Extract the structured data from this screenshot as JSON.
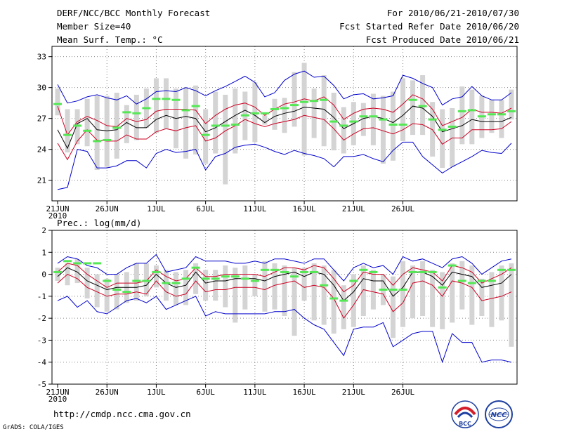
{
  "header": {
    "line1_left": "DERF/NCC/BCC Monthly Forecast",
    "line2_left": "Member Size=40",
    "line3_left": "Mean Surf. Temp.: °C",
    "line1_right": "For 2010/06/21-2010/07/30",
    "line2_right": "Fcst Started Refer Date 2010/06/20",
    "line3_right": "Fcst Produced Date 2010/06/21"
  },
  "footer": {
    "url": "http://cmdp.ncc.cma.gov.cn",
    "credit": "GrADS: COLA/IGES",
    "logo_left_text": "BCC",
    "logo_right_text": "NCC"
  },
  "colors": {
    "box": "#d4d4d4",
    "mean": "#55e855",
    "spread_outer": "#0000cc",
    "spread_inner": "#cc0022",
    "median": "#000000",
    "grid": "#888888",
    "logo_blue": "#1d3fa0",
    "logo_red": "#d21e2b"
  },
  "chart_data": [
    {
      "type": "line",
      "title": "Mean Surf. Temp.: °C",
      "ylim": [
        19,
        34
      ],
      "yticks": [
        21,
        24,
        27,
        30,
        33
      ],
      "xtick_labels": [
        "21JUN",
        "26JUN",
        "1JUL",
        "6JUL",
        "11JUL",
        "16JUL",
        "21JUL",
        "26JUL"
      ],
      "xtick_index": [
        0,
        5,
        10,
        15,
        20,
        25,
        30,
        35
      ],
      "year_label": "2010",
      "grid": true,
      "series": [
        {
          "name": "max",
          "role": "outer",
          "values": [
            30.3,
            28.5,
            28.7,
            29.1,
            29.3,
            29.0,
            28.8,
            29.2,
            28.4,
            28.9,
            29.6,
            29.7,
            29.6,
            30.0,
            29.7,
            29.2,
            29.7,
            30.1,
            30.6,
            31.1,
            30.5,
            29.1,
            29.5,
            30.7,
            31.3,
            31.6,
            31.0,
            31.1,
            30.2,
            28.9,
            29.3,
            29.4,
            28.9,
            29.0,
            29.2,
            31.2,
            30.9,
            30.4,
            30.0,
            28.3,
            28.9,
            29.1,
            30.1,
            29.2,
            28.8,
            28.8,
            29.5
          ]
        },
        {
          "name": "upper",
          "role": "inner",
          "values": [
            28.2,
            25.4,
            26.7,
            27.2,
            26.8,
            26.3,
            26.2,
            27.0,
            26.7,
            26.9,
            27.7,
            27.9,
            27.9,
            27.9,
            27.8,
            26.5,
            27.3,
            27.9,
            28.3,
            28.5,
            28.1,
            27.3,
            27.9,
            28.4,
            28.6,
            28.9,
            28.7,
            29.1,
            28.3,
            26.9,
            27.5,
            27.9,
            28.0,
            27.9,
            27.6,
            28.4,
            29.3,
            28.9,
            27.9,
            26.3,
            26.7,
            27.1,
            27.9,
            27.6,
            27.6,
            27.5,
            28.0
          ]
        },
        {
          "name": "median",
          "role": "median",
          "values": [
            25.9,
            24.1,
            26.5,
            27.0,
            25.9,
            25.8,
            25.9,
            26.6,
            26.1,
            26.1,
            26.9,
            27.3,
            27.0,
            27.2,
            27.0,
            25.7,
            26.1,
            26.7,
            27.3,
            27.8,
            27.3,
            26.6,
            27.2,
            27.5,
            27.7,
            28.1,
            28.0,
            27.9,
            27.1,
            26.0,
            26.5,
            27.0,
            27.2,
            27.0,
            26.6,
            27.3,
            28.2,
            28.0,
            27.2,
            25.7,
            26.0,
            26.3,
            26.9,
            26.7,
            26.7,
            26.7,
            27.1
          ]
        },
        {
          "name": "lower",
          "role": "inner",
          "values": [
            24.6,
            23.0,
            24.8,
            25.9,
            24.9,
            24.8,
            24.8,
            25.4,
            25.0,
            25.0,
            25.7,
            26.0,
            25.8,
            26.1,
            26.3,
            24.8,
            25.1,
            25.8,
            26.3,
            26.9,
            26.5,
            26.2,
            26.5,
            26.7,
            26.9,
            27.3,
            27.1,
            26.9,
            26.0,
            24.9,
            25.5,
            26.0,
            26.1,
            25.8,
            25.5,
            25.9,
            26.5,
            26.4,
            25.9,
            24.5,
            25.1,
            25.1,
            25.9,
            25.9,
            25.9,
            26.0,
            26.7
          ]
        },
        {
          "name": "min",
          "role": "outer",
          "values": [
            20.1,
            20.3,
            24.0,
            23.8,
            22.2,
            22.2,
            22.4,
            22.9,
            22.9,
            22.2,
            23.6,
            24.0,
            23.7,
            23.8,
            24.0,
            22.0,
            23.3,
            23.6,
            24.2,
            24.4,
            24.5,
            24.2,
            23.8,
            23.5,
            23.9,
            23.6,
            23.4,
            23.1,
            22.3,
            23.3,
            23.3,
            23.5,
            23.1,
            22.8,
            23.9,
            24.7,
            24.7,
            23.3,
            22.5,
            21.7,
            22.3,
            22.8,
            23.3,
            23.9,
            23.7,
            23.6,
            24.6
          ]
        },
        {
          "name": "mean",
          "role": "mean",
          "values": [
            28.4,
            25.4,
            26.3,
            25.8,
            24.8,
            24.9,
            26.1,
            27.6,
            27.5,
            28.0,
            28.9,
            28.9,
            28.8,
            27.8,
            28.2,
            25.4,
            26.3,
            26.3,
            26.4,
            27.3,
            27.5,
            27.5,
            27.9,
            28.0,
            28.3,
            28.6,
            28.7,
            28.8,
            26.7,
            26.3,
            26.7,
            27.2,
            27.2,
            26.9,
            26.4,
            26.4,
            28.8,
            28.2,
            26.9,
            25.9,
            26.2,
            27.7,
            27.8,
            27.2,
            27.4,
            27.4,
            27.7
          ]
        },
        {
          "name": "box_high",
          "role": "box",
          "values": [
            29.9,
            27.9,
            27.9,
            28.9,
            29.2,
            29.2,
            29.5,
            28.3,
            29.3,
            29.9,
            30.9,
            30.9,
            29.9,
            30.0,
            30.2,
            27.9,
            29.6,
            29.3,
            29.9,
            29.6,
            30.5,
            27.3,
            28.9,
            29.0,
            31.5,
            32.4,
            29.9,
            31.2,
            29.5,
            28.1,
            28.6,
            28.5,
            29.4,
            29.2,
            29.6,
            30.9,
            30.7,
            31.2,
            28.6,
            27.9,
            28.0,
            30.1,
            29.8,
            29.2,
            28.8,
            28.8,
            29.8
          ]
        },
        {
          "name": "box_low",
          "role": "box",
          "values": [
            27.3,
            23.7,
            24.5,
            24.3,
            22.0,
            22.3,
            23.1,
            24.6,
            24.9,
            26.1,
            25.6,
            26.0,
            24.1,
            23.1,
            23.5,
            22.6,
            23.6,
            20.6,
            23.6,
            24.9,
            24.7,
            26.4,
            25.9,
            25.6,
            26.2,
            23.4,
            25.1,
            24.3,
            23.9,
            23.6,
            24.4,
            25.3,
            24.4,
            22.6,
            22.9,
            24.8,
            25.4,
            25.4,
            23.3,
            22.2,
            22.3,
            24.5,
            24.5,
            25.1,
            25.6,
            25.1,
            26.9
          ]
        }
      ]
    },
    {
      "type": "line",
      "title": "Prec.: log(mm/d)",
      "ylim": [
        -5,
        2
      ],
      "yticks": [
        -5,
        -4,
        -3,
        -2,
        -1,
        0,
        1,
        2
      ],
      "xtick_labels": [
        "21JUN",
        "26JUN",
        "1JUL",
        "6JUL",
        "11JUL",
        "16JUL",
        "21JUL",
        "26JUL"
      ],
      "xtick_index": [
        0,
        5,
        10,
        15,
        20,
        25,
        30,
        35
      ],
      "year_label": "2010",
      "grid": true,
      "series": [
        {
          "name": "max",
          "role": "outer",
          "values": [
            0.5,
            0.8,
            0.7,
            0.4,
            0.3,
            0.0,
            0.0,
            0.3,
            0.5,
            0.5,
            0.9,
            0.1,
            0.2,
            0.3,
            0.8,
            0.6,
            0.6,
            0.6,
            0.5,
            0.5,
            0.6,
            0.5,
            0.7,
            0.7,
            0.6,
            0.5,
            0.7,
            0.7,
            0.2,
            -0.3,
            0.3,
            0.5,
            0.3,
            0.4,
            0.0,
            0.8,
            0.6,
            0.7,
            0.5,
            0.3,
            0.7,
            0.8,
            0.5,
            0.0,
            0.3,
            0.6,
            0.7
          ]
        },
        {
          "name": "upper",
          "role": "inner",
          "values": [
            0.1,
            0.5,
            0.4,
            0.0,
            -0.3,
            -0.6,
            -0.4,
            -0.4,
            -0.4,
            -0.3,
            0.2,
            -0.1,
            -0.3,
            -0.2,
            0.3,
            -0.1,
            -0.1,
            0.0,
            0.0,
            0.0,
            0.0,
            -0.1,
            0.1,
            0.3,
            0.3,
            0.2,
            0.4,
            0.3,
            -0.2,
            -0.8,
            -0.5,
            0.1,
            0.0,
            0.0,
            -0.5,
            0.0,
            0.3,
            0.2,
            0.1,
            -0.3,
            0.4,
            0.3,
            0.1,
            -0.4,
            -0.2,
            0.0,
            0.3
          ]
        },
        {
          "name": "median",
          "role": "median",
          "values": [
            -0.1,
            0.3,
            0.1,
            -0.3,
            -0.5,
            -0.7,
            -0.6,
            -0.6,
            -0.6,
            -0.5,
            0.0,
            -0.4,
            -0.6,
            -0.5,
            0.1,
            -0.4,
            -0.3,
            -0.3,
            -0.2,
            -0.2,
            -0.2,
            -0.3,
            -0.1,
            0.0,
            0.1,
            -0.1,
            0.1,
            0.0,
            -0.5,
            -1.2,
            -0.8,
            -0.2,
            -0.3,
            -0.3,
            -1.0,
            -0.6,
            0.1,
            0.1,
            -0.1,
            -0.5,
            0.1,
            0.0,
            -0.1,
            -0.6,
            -0.5,
            -0.4,
            0.0
          ]
        },
        {
          "name": "lower",
          "role": "inner",
          "values": [
            -0.4,
            0.0,
            -0.2,
            -0.6,
            -0.8,
            -1.0,
            -0.9,
            -0.9,
            -0.8,
            -0.9,
            -0.3,
            -0.8,
            -1.0,
            -0.9,
            -0.3,
            -0.8,
            -0.7,
            -0.7,
            -0.6,
            -0.6,
            -0.6,
            -0.7,
            -0.5,
            -0.4,
            -0.3,
            -0.6,
            -0.5,
            -0.6,
            -1.1,
            -2.0,
            -1.4,
            -0.7,
            -0.8,
            -0.9,
            -1.7,
            -1.3,
            -0.4,
            -0.3,
            -0.5,
            -1.0,
            -0.3,
            -0.4,
            -0.6,
            -1.2,
            -1.1,
            -1.0,
            -0.8
          ]
        },
        {
          "name": "min",
          "role": "outer",
          "values": [
            -1.2,
            -1.0,
            -1.5,
            -1.2,
            -1.7,
            -1.8,
            -1.5,
            -1.2,
            -1.1,
            -1.3,
            -1.0,
            -1.6,
            -1.4,
            -1.2,
            -1.0,
            -1.9,
            -1.7,
            -1.8,
            -1.8,
            -1.8,
            -1.8,
            -1.8,
            -1.7,
            -1.7,
            -1.6,
            -2.0,
            -2.3,
            -2.5,
            -3.1,
            -3.7,
            -2.5,
            -2.4,
            -2.4,
            -2.2,
            -3.3,
            -3.0,
            -2.7,
            -2.6,
            -2.6,
            -4.0,
            -2.7,
            -3.1,
            -3.1,
            -4.0,
            -3.9,
            -3.9,
            -4.0
          ]
        },
        {
          "name": "mean",
          "role": "mean",
          "values": [
            0.1,
            0.6,
            0.5,
            0.5,
            0.5,
            -0.3,
            -0.7,
            -0.8,
            -0.3,
            -0.3,
            0.1,
            -0.4,
            -0.4,
            -0.2,
            0.3,
            -0.2,
            -0.2,
            -0.1,
            -0.1,
            -0.2,
            -0.3,
            0.2,
            0.2,
            0.1,
            -0.1,
            0.1,
            0.1,
            -0.5,
            -1.1,
            -1.2,
            -0.3,
            0.2,
            0.1,
            -0.7,
            -0.7,
            -0.7,
            0.1,
            0.1,
            0.1,
            -0.6,
            0.4,
            -0.3,
            -0.4,
            -0.3,
            -0.3,
            0.2,
            0.2
          ]
        },
        {
          "name": "box_high",
          "role": "box",
          "values": [
            0.3,
            0.5,
            0.7,
            0.3,
            0.0,
            -0.2,
            0.0,
            0.1,
            0.5,
            0.5,
            0.4,
            0.2,
            0.1,
            0.2,
            0.5,
            0.2,
            0.2,
            0.4,
            0.3,
            0.4,
            0.0,
            0.6,
            0.5,
            0.4,
            0.3,
            0.3,
            0.5,
            0.4,
            0.2,
            -0.5,
            0.0,
            0.4,
            0.2,
            0.0,
            -0.1,
            0.6,
            0.4,
            0.6,
            0.2,
            0.1,
            0.5,
            0.6,
            0.4,
            -0.2,
            0.1,
            0.4,
            0.5
          ]
        },
        {
          "name": "box_low",
          "role": "box",
          "values": [
            -0.3,
            -0.5,
            -0.4,
            -1.1,
            -1.5,
            -1.7,
            -1.6,
            -1.3,
            -1.2,
            -1.0,
            -0.6,
            -1.2,
            -1.4,
            -1.4,
            -0.9,
            -1.2,
            -1.2,
            -1.5,
            -2.2,
            -1.6,
            -1.0,
            -1.7,
            -1.6,
            -1.9,
            -2.8,
            -1.2,
            -2.1,
            -2.3,
            -2.7,
            -2.5,
            -2.4,
            -1.9,
            -1.6,
            -1.4,
            -2.9,
            -2.4,
            -2.0,
            -1.9,
            -2.4,
            -2.5,
            -2.2,
            -1.6,
            -2.3,
            -1.9,
            -2.4,
            -2.1,
            -3.3
          ]
        }
      ]
    }
  ]
}
